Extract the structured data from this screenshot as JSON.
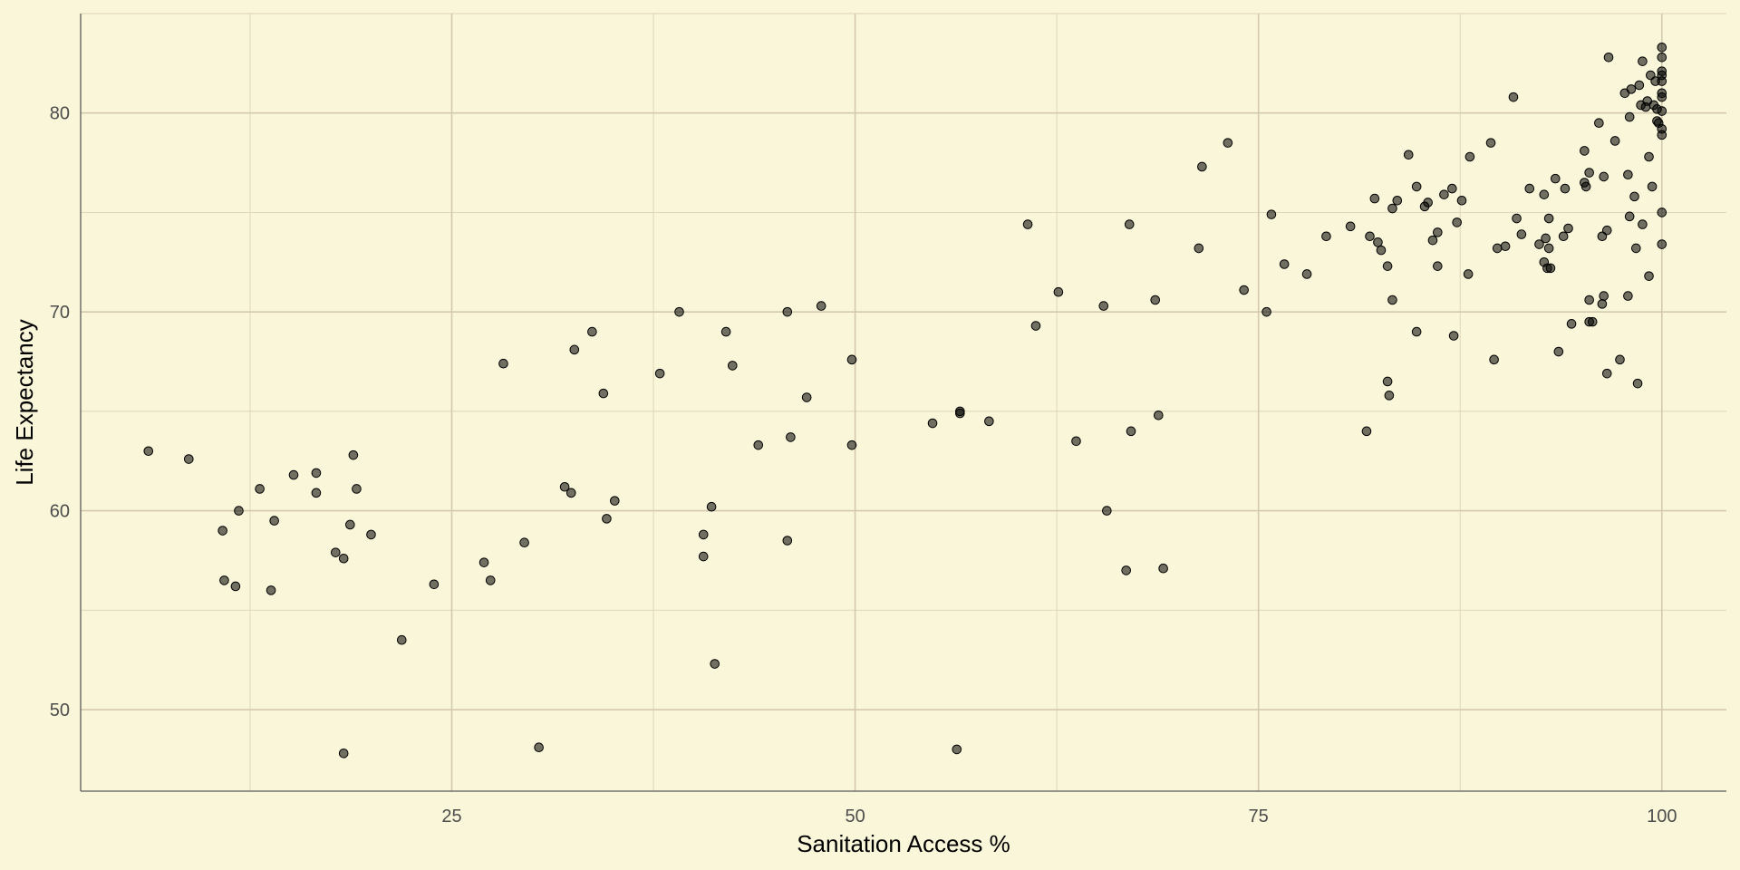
{
  "chart_data": {
    "type": "scatter",
    "title": "",
    "xlabel": "Sanitation Access %",
    "ylabel": "Life Expectancy",
    "xlim": [
      2,
      104
    ],
    "ylim": [
      45.9,
      85
    ],
    "x_ticks": [
      25,
      50,
      75,
      100
    ],
    "y_ticks": [
      50,
      60,
      70,
      80
    ],
    "x_tick_labels": [
      "25",
      "50",
      "75",
      "100"
    ],
    "y_tick_labels": [
      "50",
      "60",
      "70",
      "80"
    ],
    "grid": true,
    "legend": "none",
    "point_color": "#000000",
    "background_color": "#f9f6d9",
    "points": [
      [
        6.2,
        63.0
      ],
      [
        8.7,
        62.6
      ],
      [
        10.8,
        59.0
      ],
      [
        10.9,
        56.5
      ],
      [
        11.6,
        56.2
      ],
      [
        11.8,
        60.0
      ],
      [
        13.1,
        61.1
      ],
      [
        13.8,
        56.0
      ],
      [
        14.0,
        59.5
      ],
      [
        15.2,
        61.8
      ],
      [
        16.6,
        61.9
      ],
      [
        16.6,
        60.9
      ],
      [
        17.8,
        57.9
      ],
      [
        18.3,
        57.6
      ],
      [
        18.7,
        59.3
      ],
      [
        18.9,
        62.8
      ],
      [
        19.1,
        61.1
      ],
      [
        20.0,
        58.8
      ],
      [
        18.3,
        47.8
      ],
      [
        21.9,
        53.5
      ],
      [
        23.9,
        56.3
      ],
      [
        27.0,
        57.4
      ],
      [
        27.4,
        56.5
      ],
      [
        28.2,
        67.4
      ],
      [
        29.5,
        58.4
      ],
      [
        30.4,
        48.1
      ],
      [
        32.0,
        61.2
      ],
      [
        32.4,
        60.9
      ],
      [
        32.6,
        68.1
      ],
      [
        33.7,
        69.0
      ],
      [
        34.4,
        65.9
      ],
      [
        34.6,
        59.6
      ],
      [
        35.1,
        60.5
      ],
      [
        37.9,
        66.9
      ],
      [
        39.1,
        70.0
      ],
      [
        40.6,
        58.8
      ],
      [
        40.6,
        57.7
      ],
      [
        41.1,
        60.2
      ],
      [
        41.3,
        52.3
      ],
      [
        42.0,
        69.0
      ],
      [
        42.4,
        67.3
      ],
      [
        44.0,
        63.3
      ],
      [
        45.8,
        70.0
      ],
      [
        45.8,
        58.5
      ],
      [
        46.0,
        63.7
      ],
      [
        47.0,
        65.7
      ],
      [
        47.9,
        70.3
      ],
      [
        49.8,
        67.6
      ],
      [
        49.8,
        63.3
      ],
      [
        54.8,
        64.4
      ],
      [
        56.5,
        65.0
      ],
      [
        56.5,
        64.9
      ],
      [
        56.3,
        48.0
      ],
      [
        58.3,
        64.5
      ],
      [
        60.7,
        74.4
      ],
      [
        61.2,
        69.3
      ],
      [
        62.6,
        71.0
      ],
      [
        63.7,
        63.5
      ],
      [
        65.4,
        70.3
      ],
      [
        65.6,
        60.0
      ],
      [
        66.8,
        57.0
      ],
      [
        67.0,
        74.4
      ],
      [
        67.1,
        64.0
      ],
      [
        68.6,
        70.6
      ],
      [
        68.8,
        64.8
      ],
      [
        69.1,
        57.1
      ],
      [
        71.3,
        73.2
      ],
      [
        71.5,
        77.3
      ],
      [
        73.1,
        78.5
      ],
      [
        74.1,
        71.1
      ],
      [
        75.5,
        70.0
      ],
      [
        75.8,
        74.9
      ],
      [
        76.6,
        72.4
      ],
      [
        78.0,
        71.9
      ],
      [
        79.2,
        73.8
      ],
      [
        80.7,
        74.3
      ],
      [
        81.7,
        64.0
      ],
      [
        81.9,
        73.8
      ],
      [
        82.2,
        75.7
      ],
      [
        82.4,
        73.5
      ],
      [
        82.6,
        73.1
      ],
      [
        83.0,
        72.3
      ],
      [
        83.0,
        66.5
      ],
      [
        83.1,
        65.8
      ],
      [
        83.3,
        75.2
      ],
      [
        83.3,
        70.6
      ],
      [
        83.6,
        75.6
      ],
      [
        84.3,
        77.9
      ],
      [
        84.8,
        69.0
      ],
      [
        84.8,
        76.3
      ],
      [
        85.3,
        75.3
      ],
      [
        85.5,
        75.5
      ],
      [
        85.8,
        73.6
      ],
      [
        86.1,
        74.0
      ],
      [
        86.1,
        72.3
      ],
      [
        86.5,
        75.9
      ],
      [
        87.0,
        76.2
      ],
      [
        87.1,
        68.8
      ],
      [
        87.3,
        74.5
      ],
      [
        87.6,
        75.6
      ],
      [
        88.0,
        71.9
      ],
      [
        88.1,
        77.8
      ],
      [
        89.4,
        78.5
      ],
      [
        89.6,
        67.6
      ],
      [
        89.8,
        73.2
      ],
      [
        90.3,
        73.3
      ],
      [
        90.8,
        80.8
      ],
      [
        91.0,
        74.7
      ],
      [
        91.3,
        73.9
      ],
      [
        91.8,
        76.2
      ],
      [
        92.4,
        73.4
      ],
      [
        92.7,
        75.9
      ],
      [
        92.7,
        72.5
      ],
      [
        92.8,
        73.7
      ],
      [
        92.9,
        72.2
      ],
      [
        93.0,
        73.2
      ],
      [
        93.0,
        74.7
      ],
      [
        93.1,
        72.2
      ],
      [
        93.4,
        76.7
      ],
      [
        93.6,
        68.0
      ],
      [
        93.9,
        73.8
      ],
      [
        94.0,
        76.2
      ],
      [
        94.2,
        74.2
      ],
      [
        94.4,
        69.4
      ],
      [
        95.2,
        76.5
      ],
      [
        95.2,
        78.1
      ],
      [
        95.3,
        76.3
      ],
      [
        95.5,
        77.0
      ],
      [
        95.5,
        70.6
      ],
      [
        95.5,
        69.5
      ],
      [
        95.7,
        69.5
      ],
      [
        96.1,
        79.5
      ],
      [
        96.3,
        70.4
      ],
      [
        96.3,
        73.8
      ],
      [
        96.4,
        76.8
      ],
      [
        96.4,
        70.8
      ],
      [
        96.6,
        74.1
      ],
      [
        96.6,
        66.9
      ],
      [
        96.7,
        82.8
      ],
      [
        97.1,
        78.6
      ],
      [
        97.4,
        67.6
      ],
      [
        97.7,
        81.0
      ],
      [
        97.9,
        76.9
      ],
      [
        97.9,
        70.8
      ],
      [
        98.0,
        79.8
      ],
      [
        98.0,
        74.8
      ],
      [
        98.1,
        81.2
      ],
      [
        98.3,
        75.8
      ],
      [
        98.4,
        73.2
      ],
      [
        98.5,
        66.4
      ],
      [
        98.6,
        81.4
      ],
      [
        98.7,
        80.4
      ],
      [
        98.8,
        82.6
      ],
      [
        98.8,
        74.4
      ],
      [
        99.0,
        80.3
      ],
      [
        99.1,
        80.6
      ],
      [
        99.2,
        77.8
      ],
      [
        99.2,
        71.8
      ],
      [
        99.3,
        81.9
      ],
      [
        99.4,
        76.3
      ],
      [
        99.5,
        80.4
      ],
      [
        99.6,
        81.6
      ],
      [
        99.7,
        80.2
      ],
      [
        99.7,
        79.6
      ],
      [
        99.8,
        79.5
      ],
      [
        100.0,
        83.3
      ],
      [
        100.0,
        82.8
      ],
      [
        100.0,
        82.1
      ],
      [
        100.0,
        81.9
      ],
      [
        100.0,
        81.6
      ],
      [
        100.0,
        81.0
      ],
      [
        100.0,
        80.8
      ],
      [
        100.0,
        80.1
      ],
      [
        100.0,
        79.2
      ],
      [
        100.0,
        78.9
      ],
      [
        100.0,
        75.0
      ],
      [
        100.0,
        73.4
      ]
    ]
  }
}
